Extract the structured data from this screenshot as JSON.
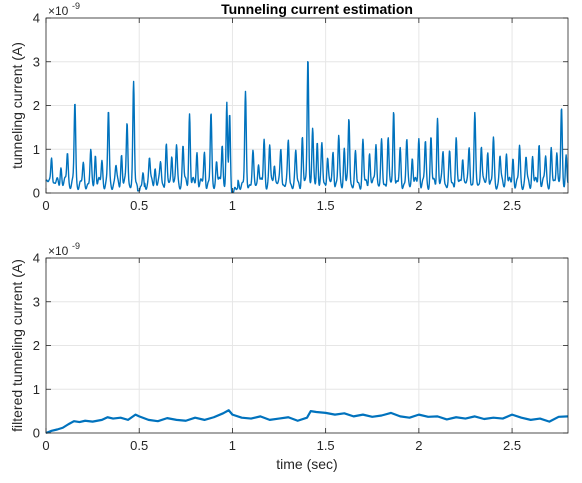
{
  "chart_data": [
    {
      "type": "line",
      "title": "Tunneling current estimation",
      "xlabel": "",
      "ylabel": "tunneling current (A)",
      "xlim": [
        0,
        2.8
      ],
      "ylim": [
        0,
        4
      ],
      "x_ticks": [
        "0",
        "0.5",
        "1",
        "1.5",
        "2",
        "2.5"
      ],
      "y_ticks": [
        "0",
        "1",
        "2",
        "3",
        "4"
      ],
      "y_exponent": "×10",
      "y_exponent_power": "-9",
      "grid": true,
      "color": "#0072BD",
      "baseline": 0.22,
      "peaks": [
        [
          0.03,
          0.92
        ],
        [
          0.08,
          0.62
        ],
        [
          0.115,
          0.95
        ],
        [
          0.155,
          2.05
        ],
        [
          0.2,
          0.6
        ],
        [
          0.24,
          0.88
        ],
        [
          0.265,
          0.9
        ],
        [
          0.3,
          0.75
        ],
        [
          0.335,
          1.85
        ],
        [
          0.375,
          0.6
        ],
        [
          0.405,
          0.9
        ],
        [
          0.435,
          1.65
        ],
        [
          0.47,
          2.45
        ],
        [
          0.52,
          0.55
        ],
        [
          0.555,
          0.8
        ],
        [
          0.585,
          0.6
        ],
        [
          0.615,
          0.7
        ],
        [
          0.645,
          1.05
        ],
        [
          0.675,
          0.95
        ],
        [
          0.7,
          1.05
        ],
        [
          0.735,
          1.1
        ],
        [
          0.77,
          1.85
        ],
        [
          0.81,
          0.95
        ],
        [
          0.85,
          0.9
        ],
        [
          0.885,
          1.75
        ],
        [
          0.915,
          0.75
        ],
        [
          0.945,
          1.15
        ],
        [
          0.97,
          1.95
        ],
        [
          0.985,
          2.0
        ],
        [
          1.07,
          2.2
        ],
        [
          1.11,
          0.85
        ],
        [
          1.14,
          0.75
        ],
        [
          1.17,
          1.2
        ],
        [
          1.2,
          1.05
        ],
        [
          1.225,
          0.75
        ],
        [
          1.26,
          1.0
        ],
        [
          1.3,
          1.15
        ],
        [
          1.34,
          0.9
        ],
        [
          1.375,
          1.25
        ],
        [
          1.405,
          3.2
        ],
        [
          1.43,
          1.4
        ],
        [
          1.455,
          1.2
        ],
        [
          1.48,
          1.05
        ],
        [
          1.51,
          0.85
        ],
        [
          1.54,
          0.95
        ],
        [
          1.57,
          1.25
        ],
        [
          1.6,
          1.05
        ],
        [
          1.625,
          1.7
        ],
        [
          1.66,
          0.85
        ],
        [
          1.7,
          1.15
        ],
        [
          1.735,
          0.95
        ],
        [
          1.77,
          1.2
        ],
        [
          1.8,
          1.1
        ],
        [
          1.835,
          1.25
        ],
        [
          1.865,
          1.95
        ],
        [
          1.9,
          0.95
        ],
        [
          1.935,
          1.15
        ],
        [
          1.965,
          0.85
        ],
        [
          2.0,
          1.25
        ],
        [
          2.035,
          1.15
        ],
        [
          2.065,
          1.25
        ],
        [
          2.1,
          1.75
        ],
        [
          2.13,
          0.95
        ],
        [
          2.165,
          0.85
        ],
        [
          2.2,
          1.25
        ],
        [
          2.235,
          0.9
        ],
        [
          2.27,
          1.05
        ],
        [
          2.3,
          1.75
        ],
        [
          2.335,
          1.15
        ],
        [
          2.37,
          1.0
        ],
        [
          2.4,
          1.2
        ],
        [
          2.435,
          0.85
        ],
        [
          2.47,
          0.95
        ],
        [
          2.505,
          0.8
        ],
        [
          2.54,
          1.05
        ],
        [
          2.575,
          0.8
        ],
        [
          2.61,
          0.85
        ],
        [
          2.645,
          1.15
        ],
        [
          2.68,
          0.85
        ],
        [
          2.71,
          0.95
        ],
        [
          2.74,
          1.05
        ],
        [
          2.765,
          1.85
        ],
        [
          2.79,
          0.9
        ]
      ]
    },
    {
      "type": "line",
      "title": "",
      "xlabel": "time (sec)",
      "ylabel": "filtered tunneling current (A)",
      "xlim": [
        0,
        2.8
      ],
      "ylim": [
        0,
        4
      ],
      "x_ticks": [
        "0",
        "0.5",
        "1",
        "1.5",
        "2",
        "2.5"
      ],
      "y_ticks": [
        "0",
        "1",
        "2",
        "3",
        "4"
      ],
      "y_exponent": "×10",
      "y_exponent_power": "-9",
      "grid": true,
      "color": "#0072BD",
      "x": [
        0,
        0.03,
        0.06,
        0.09,
        0.12,
        0.15,
        0.18,
        0.21,
        0.25,
        0.3,
        0.33,
        0.36,
        0.4,
        0.44,
        0.48,
        0.5,
        0.55,
        0.6,
        0.65,
        0.7,
        0.75,
        0.8,
        0.85,
        0.9,
        0.95,
        0.98,
        1.0,
        1.05,
        1.1,
        1.15,
        1.2,
        1.25,
        1.3,
        1.35,
        1.4,
        1.42,
        1.45,
        1.5,
        1.55,
        1.6,
        1.65,
        1.7,
        1.75,
        1.8,
        1.85,
        1.9,
        1.95,
        2.0,
        2.05,
        2.1,
        2.15,
        2.2,
        2.25,
        2.3,
        2.35,
        2.4,
        2.45,
        2.5,
        2.55,
        2.6,
        2.65,
        2.7,
        2.75,
        2.8
      ],
      "y": [
        0.0,
        0.05,
        0.08,
        0.12,
        0.2,
        0.27,
        0.25,
        0.28,
        0.26,
        0.3,
        0.36,
        0.33,
        0.35,
        0.3,
        0.42,
        0.38,
        0.3,
        0.27,
        0.34,
        0.3,
        0.28,
        0.35,
        0.3,
        0.36,
        0.45,
        0.52,
        0.42,
        0.35,
        0.33,
        0.38,
        0.3,
        0.33,
        0.36,
        0.28,
        0.35,
        0.5,
        0.48,
        0.46,
        0.42,
        0.45,
        0.38,
        0.42,
        0.37,
        0.4,
        0.46,
        0.38,
        0.35,
        0.42,
        0.37,
        0.38,
        0.31,
        0.36,
        0.33,
        0.38,
        0.32,
        0.35,
        0.33,
        0.42,
        0.35,
        0.3,
        0.33,
        0.26,
        0.37,
        0.38
      ]
    }
  ]
}
